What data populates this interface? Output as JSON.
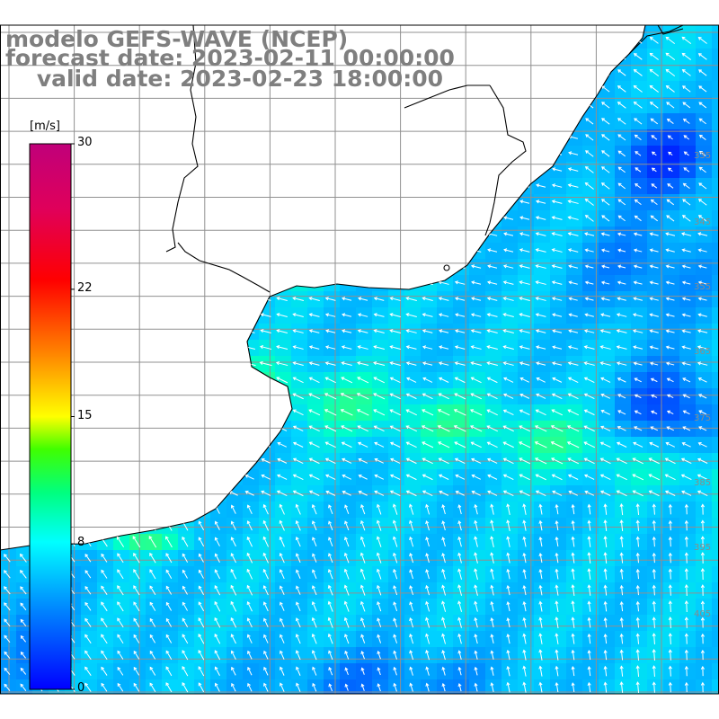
{
  "title": {
    "line1": "modelo GEFS-WAVE (NCEP)",
    "line2": "forecast date: 2023-02-11 00:00:00",
    "line3": "    valid date: 2023-02-23 18:00:00"
  },
  "colorbar": {
    "unit": "[m/s]",
    "ticks": [
      {
        "label": "30",
        "value": 30
      },
      {
        "label": "22",
        "value": 22
      },
      {
        "label": "15",
        "value": 15
      },
      {
        "label": "8",
        "value": 8
      },
      {
        "label": "0",
        "value": 0
      }
    ],
    "range": [
      0,
      30
    ],
    "colors": [
      "#0000ff",
      "#0080ff",
      "#00e0ff",
      "#00ff90",
      "#40ff00",
      "#d0ff00",
      "#ffd000",
      "#ff8000",
      "#ff2000",
      "#e0004a",
      "#c0007a"
    ]
  },
  "colors": {
    "grid": "#909090",
    "coastline": "#000000",
    "arrows": "#ffffff",
    "title": "#7f7f7f"
  }
}
